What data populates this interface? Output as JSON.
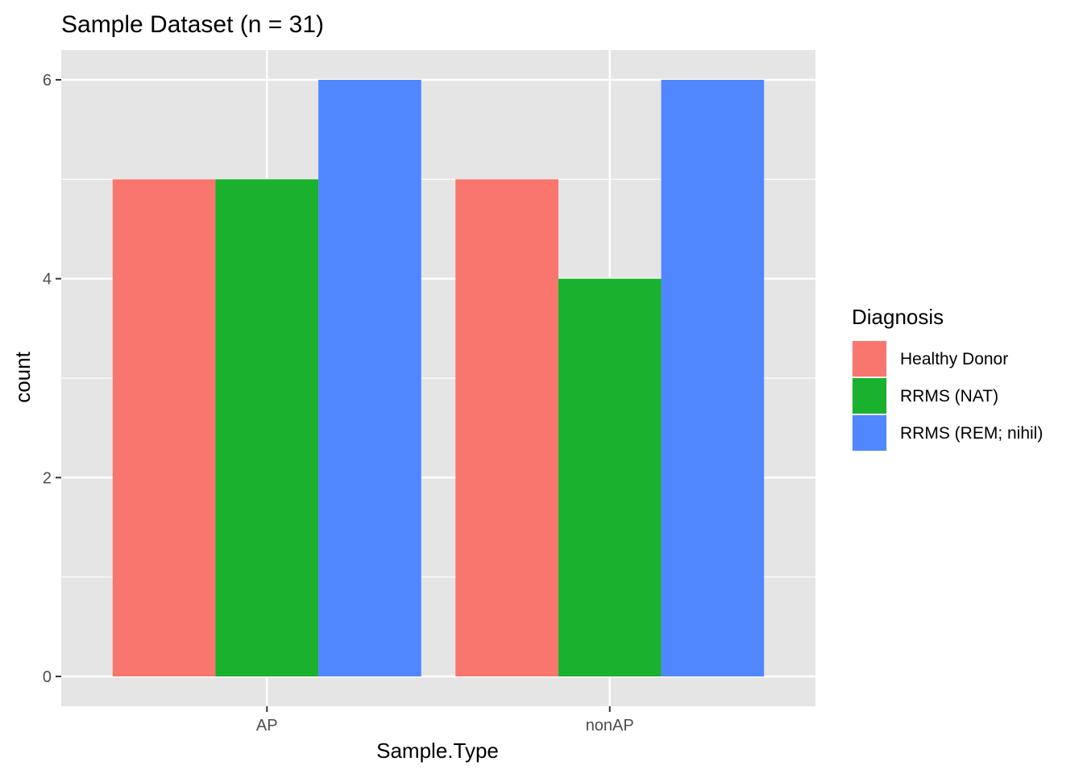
{
  "chart_data": {
    "type": "bar",
    "title": "Sample Dataset (n = 31)",
    "xlabel": "Sample.Type",
    "ylabel": "count",
    "categories": [
      "AP",
      "nonAP"
    ],
    "series": [
      {
        "name": "Healthy Donor",
        "color": "#F8766D",
        "values": [
          5,
          5
        ]
      },
      {
        "name": "RRMS (NAT)",
        "color": "#1AB12E",
        "values": [
          5,
          4
        ]
      },
      {
        "name": "RRMS (REM; nihil)",
        "color": "#5087FF",
        "values": [
          6,
          6
        ]
      }
    ],
    "ylim": [
      -0.3,
      6.3
    ],
    "yticks": [
      0,
      2,
      4,
      6
    ],
    "grid": true,
    "legend": {
      "title": "Diagnosis",
      "placement": "right"
    },
    "panel_background": "#E5E5E5"
  }
}
